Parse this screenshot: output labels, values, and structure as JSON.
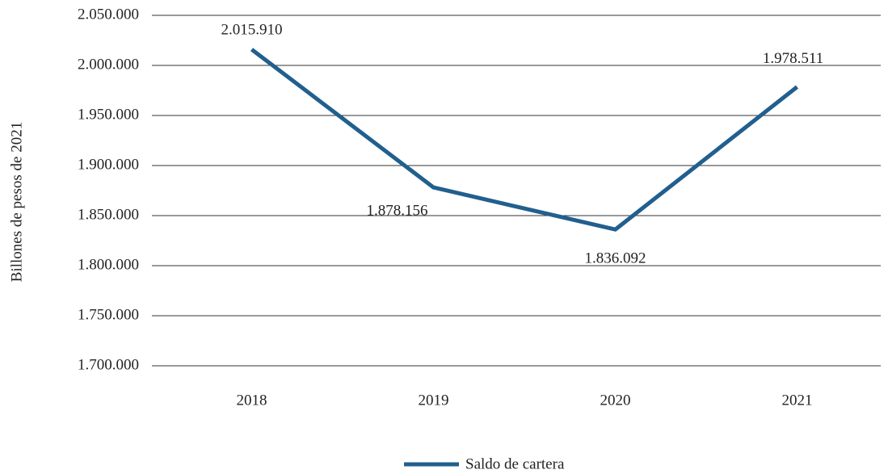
{
  "chart_data": {
    "type": "line",
    "y_label": "Billones de pesos de 2021",
    "categories": [
      "2018",
      "2019",
      "2020",
      "2021"
    ],
    "series": [
      {
        "name": "Saldo de cartera",
        "color": "#215f8e",
        "values": [
          2015910,
          1878156,
          1836092,
          1978511
        ],
        "value_labels": [
          "2.015.910",
          "1.878.156",
          "1.836.092",
          "1.978.511"
        ]
      }
    ],
    "ylim": [
      1700000,
      2050000
    ],
    "yticks": [
      {
        "value": 1700000,
        "label": "1.700.000"
      },
      {
        "value": 1750000,
        "label": "1.750.000"
      },
      {
        "value": 1800000,
        "label": "1.800.000"
      },
      {
        "value": 1850000,
        "label": "1.850.000"
      },
      {
        "value": 1900000,
        "label": "1.900.000"
      },
      {
        "value": 1950000,
        "label": "1.950.000"
      },
      {
        "value": 2000000,
        "label": "2.000.000"
      },
      {
        "value": 2050000,
        "label": "2.050.000"
      }
    ],
    "grid": true,
    "legend": "bottom"
  }
}
